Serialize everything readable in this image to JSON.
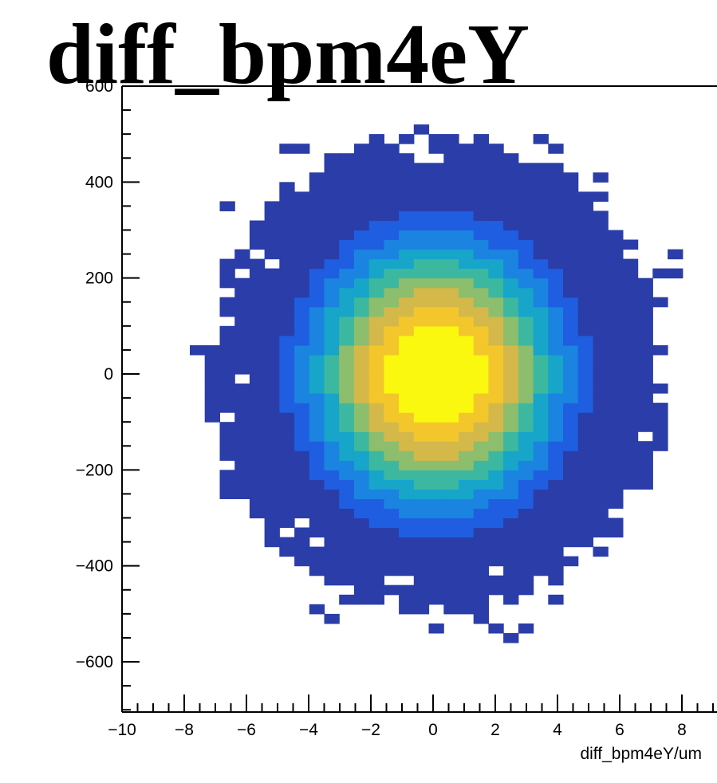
{
  "chart_data": {
    "type": "heatmap",
    "title": "diff_bpm4eY",
    "xlabel": "diff_bpm4eY/um",
    "ylabel": "",
    "xlim": [
      -10,
      9
    ],
    "ylim": [
      -700,
      600
    ],
    "x_ticks": [
      "−10",
      "−8",
      "−6",
      "−4",
      "−2",
      "0",
      "2",
      "4",
      "6",
      "8"
    ],
    "x_tick_values": [
      -10,
      -8,
      -6,
      -4,
      -2,
      0,
      2,
      4,
      6,
      8
    ],
    "y_ticks": [
      "−600",
      "−400",
      "−200",
      "0",
      "200",
      "400",
      "600"
    ],
    "y_tick_values": [
      -600,
      -400,
      -200,
      0,
      200,
      400,
      600
    ],
    "grid": false,
    "legend": "none",
    "colormap": [
      "#2b3da8",
      "#1f5ee0",
      "#1a84e0",
      "#17a5c9",
      "#3db8a0",
      "#8cbe6e",
      "#d4b84a",
      "#f3c72c",
      "#f9f80e"
    ],
    "distribution": {
      "center_x": 0.1,
      "center_y": 0,
      "sigma_x": 2.2,
      "sigma_y": 150,
      "extent_x": [
        -8.3,
        8.0
      ],
      "extent_y": [
        -620,
        530
      ]
    }
  }
}
